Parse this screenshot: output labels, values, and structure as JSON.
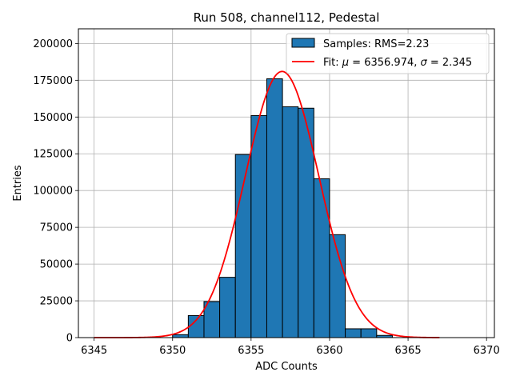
{
  "chart_data": {
    "type": "bar",
    "title": "Run 508, channel112, Pedestal",
    "xlabel": "ADC Counts",
    "ylabel": "Entries",
    "xlim": [
      6344,
      6370.5
    ],
    "ylim": [
      0,
      210000
    ],
    "xticks": [
      6345,
      6350,
      6355,
      6360,
      6365,
      6370
    ],
    "yticks": [
      0,
      25000,
      50000,
      75000,
      100000,
      125000,
      150000,
      175000,
      200000
    ],
    "grid": true,
    "legend_position": "top-right",
    "bin_width": 1,
    "series": [
      {
        "name": "Samples: RMS=2.23",
        "kind": "histogram",
        "color": "#1f77b4",
        "bins": [
          {
            "x": 6350,
            "y": 2000
          },
          {
            "x": 6351,
            "y": 15000
          },
          {
            "x": 6352,
            "y": 24500
          },
          {
            "x": 6353,
            "y": 41000
          },
          {
            "x": 6354,
            "y": 124500
          },
          {
            "x": 6355,
            "y": 151000
          },
          {
            "x": 6356,
            "y": 176000
          },
          {
            "x": 6357,
            "y": 157000
          },
          {
            "x": 6358,
            "y": 156000
          },
          {
            "x": 6359,
            "y": 108000
          },
          {
            "x": 6360,
            "y": 70000
          },
          {
            "x": 6361,
            "y": 6000
          },
          {
            "x": 6362,
            "y": 6000
          },
          {
            "x": 6363,
            "y": 1500
          }
        ]
      },
      {
        "name": "Fit: μ = 6356.974, σ = 2.345",
        "kind": "gaussian-fit",
        "color": "#ff0000",
        "mu": 6356.974,
        "sigma": 2.345,
        "peak": 181000,
        "x_range": [
          6345,
          6367
        ]
      }
    ],
    "legend": {
      "hist_label": "Samples: RMS=2.23",
      "fit_prefix": "Fit: ",
      "fit_mu_symbol": "μ",
      "fit_mu_value": " = 6356.974, ",
      "fit_sigma_symbol": "σ",
      "fit_sigma_value": " = 2.345"
    }
  }
}
